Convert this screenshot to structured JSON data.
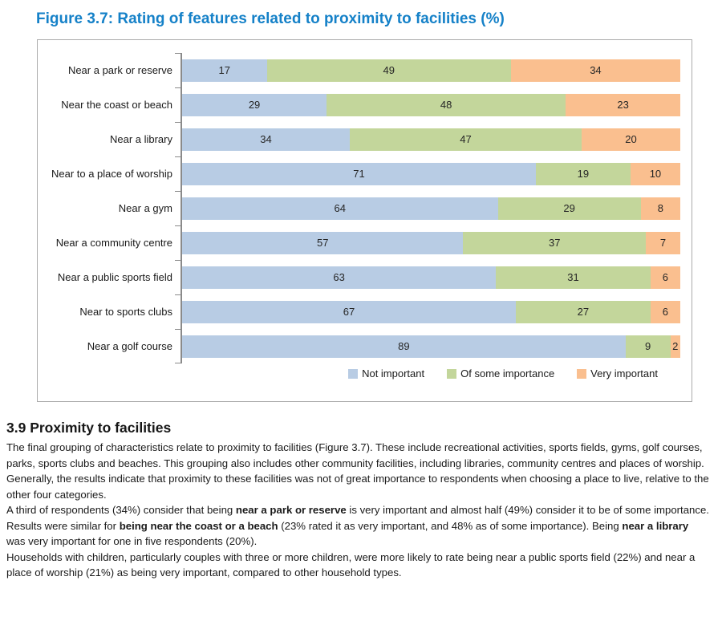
{
  "figure": {
    "title": "Figure 3.7: Rating of features related to proximity to facilities (%)"
  },
  "chart_data": {
    "type": "bar",
    "orientation": "horizontal",
    "stacked": true,
    "title": "Figure 3.7: Rating of features related to proximity to facilities (%)",
    "xlabel": "",
    "ylabel": "",
    "xlim": [
      0,
      100
    ],
    "grid": false,
    "value_labels": true,
    "legend_position": "bottom",
    "categories": [
      "Near a park or reserve",
      "Near the coast or beach",
      "Near a library",
      "Near to a place of worship",
      "Near a gym",
      "Near a community centre",
      "Near a public sports field",
      "Near to sports clubs",
      "Near a golf course"
    ],
    "series": [
      {
        "name": "Not important",
        "color": "#b8cce4",
        "values": [
          17,
          29,
          34,
          71,
          64,
          57,
          63,
          67,
          89
        ]
      },
      {
        "name": "Of some importance",
        "color": "#c3d69b",
        "values": [
          49,
          48,
          47,
          19,
          29,
          37,
          31,
          27,
          9
        ]
      },
      {
        "name": "Very important",
        "color": "#fabf8f",
        "values": [
          34,
          23,
          20,
          10,
          8,
          7,
          6,
          6,
          2
        ]
      }
    ]
  },
  "section": {
    "heading": "3.9 Proximity to facilities",
    "paragraphs": [
      {
        "segments": [
          {
            "t": "The final grouping of characteristics relate to proximity to facilities (Figure 3.7). These include recreational activities, sports fields, gyms, golf courses, parks, sports clubs and beaches. This grouping also includes other community facilities, including libraries, community centres and places of worship.",
            "b": false
          }
        ]
      },
      {
        "segments": [
          {
            "t": "Generally, the results indicate that proximity to these facilities was not of great importance to respondents when choosing a place to live, relative to the other four categories.",
            "b": false
          }
        ]
      },
      {
        "segments": [
          {
            "t": "A third of respondents (34%) consider that being ",
            "b": false
          },
          {
            "t": "near a park or reserve",
            "b": true
          },
          {
            "t": " is very important and almost half (49%) consider it to be of some importance. Results were similar for ",
            "b": false
          },
          {
            "t": "being near the coast or a beach",
            "b": true
          },
          {
            "t": " (23% rated it as very important, and 48% as of some importance). Being ",
            "b": false
          },
          {
            "t": "near a library",
            "b": true
          },
          {
            "t": " was very important for one in five respondents (20%).",
            "b": false
          }
        ]
      },
      {
        "segments": [
          {
            "t": "Households with children, particularly couples with three or more children, were more likely to rate being near a public sports field (22%) and near a place of worship (21%) as being very important, compared to other household types.",
            "b": false
          }
        ]
      }
    ]
  },
  "colors": {
    "title": "#1581c8",
    "box_border": "#ababab",
    "axis": "#8a8a8a",
    "text": "#1a1a1a"
  }
}
